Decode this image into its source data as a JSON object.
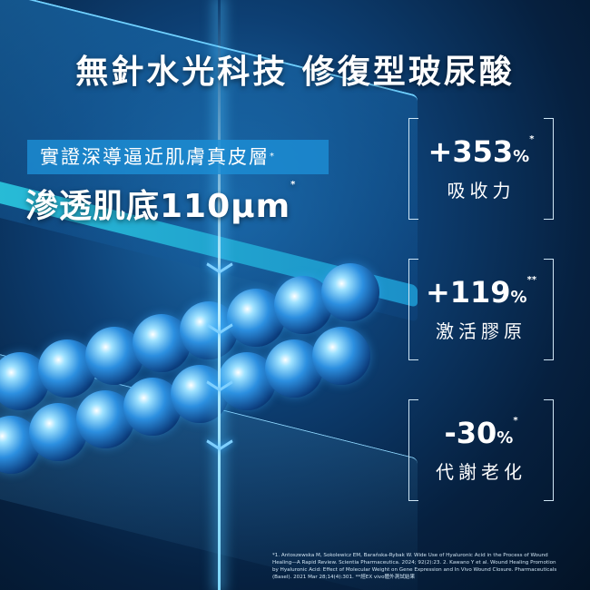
{
  "headline": "無針水光科技 修復型玻尿酸",
  "subheadline": {
    "text": "實證深導逼近肌膚真皮層",
    "mark": "*"
  },
  "claim": {
    "text": "滲透肌底110μm",
    "mark": "*"
  },
  "stats": [
    {
      "value": "+353",
      "unit": "%",
      "mark": "*",
      "label": "吸收力"
    },
    {
      "value": "+119",
      "unit": "%",
      "mark": "**",
      "label": "激活膠原"
    },
    {
      "value": "-30",
      "unit": "%",
      "mark": "*",
      "label": "代謝老化"
    }
  ],
  "footnote": "*1. Antoszewska M, Sokolewicz EM, Barańska-Rybak W. Wide Use of Hyaluronic Acid in the Process of Wound Healing—A Rapid Review. Scientia Pharmaceutica. 2024; 92(2):23. 2. Kawano Y et al. Wound Healing Promotion by Hyaluronic Acid: Effect of Molecular Weight on Gene Expression and In Vivo Wound Closure. Pharmaceuticals (Basel). 2021 Mar 28;14(4):301. **經EX vivo體外測試結果",
  "colors": {
    "accent": "#1d8fd6",
    "background": "#06203f",
    "glow": "#4fc3ff"
  },
  "icons": [
    "chevron-down-icon"
  ]
}
